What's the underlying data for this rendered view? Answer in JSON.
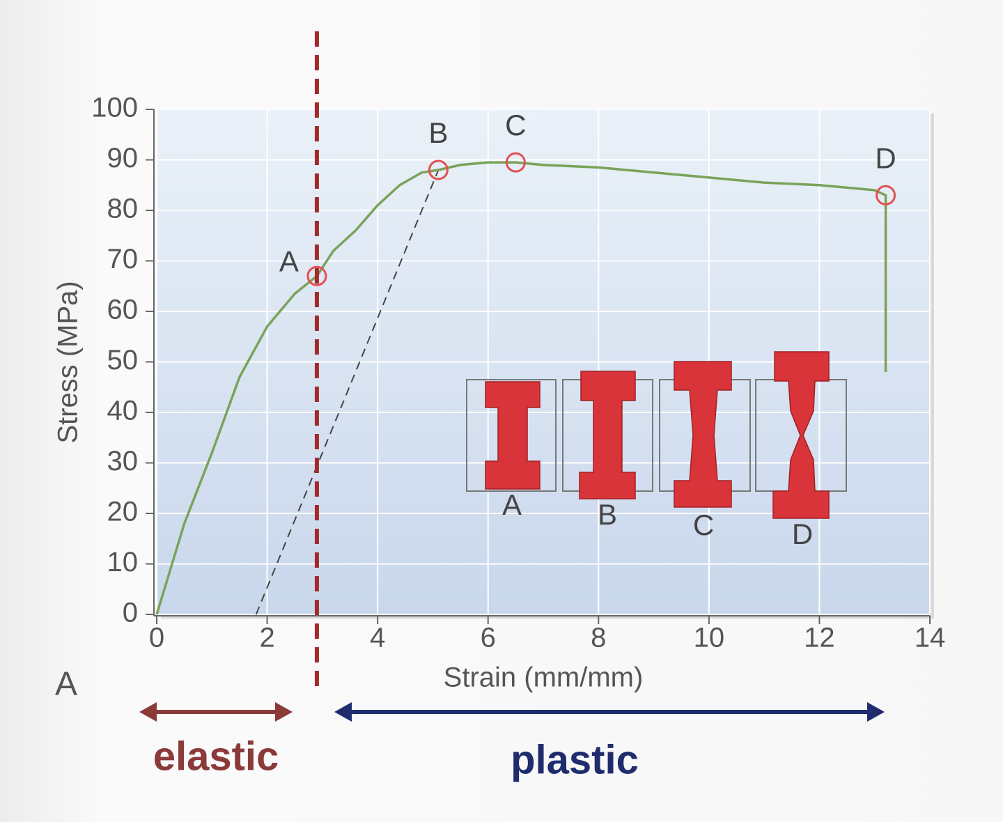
{
  "chart_data": {
    "type": "line",
    "xlabel": "Strain (mm/mm)",
    "ylabel": "Stress (MPa)",
    "panel_label": "A",
    "xlim": [
      0,
      14
    ],
    "ylim": [
      0,
      100
    ],
    "xticks": [
      0,
      2,
      4,
      6,
      8,
      10,
      12,
      14
    ],
    "yticks": [
      0,
      10,
      20,
      30,
      40,
      50,
      60,
      70,
      80,
      90,
      100
    ],
    "grid": true,
    "series": [
      {
        "color": "#7aa35a",
        "x": [
          0,
          0.5,
          1,
          1.5,
          2,
          2.5,
          2.9,
          3.2,
          3.6,
          4,
          4.4,
          4.8,
          5.1,
          5.5,
          6,
          6.5,
          7,
          8,
          9,
          10,
          11,
          12,
          13,
          13.2,
          13.2
        ],
        "values": [
          0,
          18,
          32,
          47,
          57,
          63.5,
          67,
          72,
          76,
          81,
          85,
          87.5,
          88,
          89,
          89.5,
          89.5,
          89,
          88.5,
          87.5,
          86.5,
          85.5,
          85,
          84,
          83,
          48
        ]
      }
    ],
    "points": [
      {
        "label": "A",
        "x": 2.9,
        "y": 67
      },
      {
        "label": "B",
        "x": 5.1,
        "y": 88
      },
      {
        "label": "C",
        "x": 6.5,
        "y": 89.5
      },
      {
        "label": "D",
        "x": 13.2,
        "y": 83
      }
    ],
    "offset_line": {
      "x": [
        1.8,
        5.1
      ],
      "values": [
        0,
        88
      ]
    },
    "divider_x": 2.9,
    "regions": [
      {
        "label": "elastic",
        "color": "#8b3a3a"
      },
      {
        "label": "plastic",
        "color": "#1f2d6e"
      }
    ],
    "specimens": [
      "A",
      "B",
      "C",
      "D"
    ]
  }
}
